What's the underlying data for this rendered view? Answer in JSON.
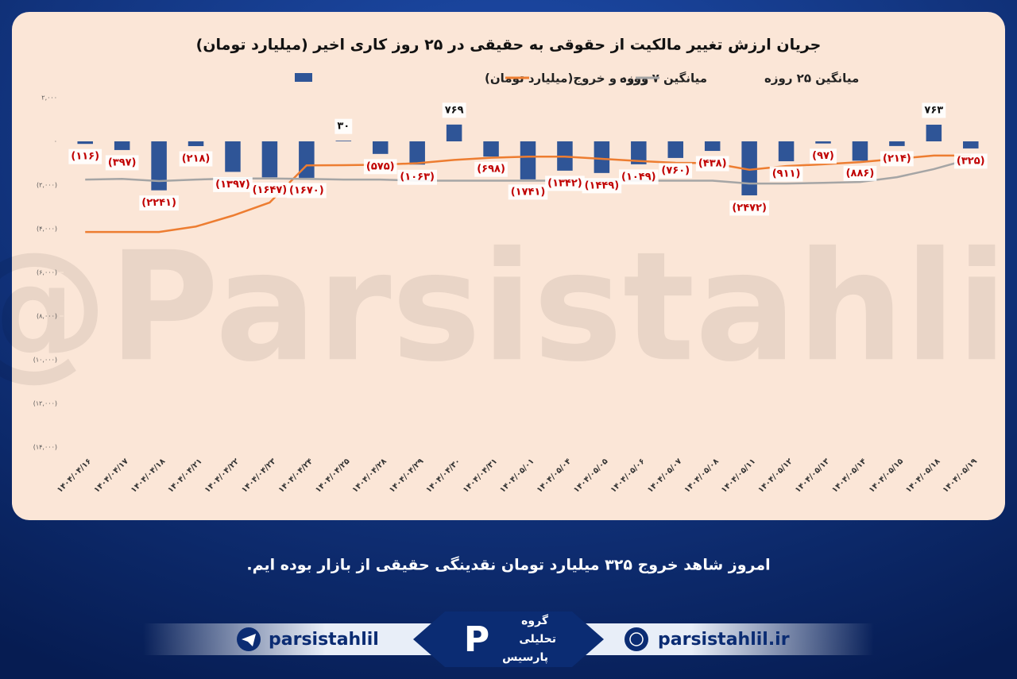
{
  "chart_data": {
    "type": "bar",
    "title": "جریان ارزش تغییر مالکیت از حقوقی به حقیقی در ۲۵ روز کاری اخیر (میلیارد تومان)",
    "categories": [
      "۱۴۰۴/۰۴/۱۶",
      "۱۴۰۴/۰۴/۱۷",
      "۱۴۰۴/۰۴/۱۸",
      "۱۴۰۴/۰۴/۲۱",
      "۱۴۰۴/۰۴/۲۲",
      "۱۴۰۴/۰۴/۲۳",
      "۱۴۰۴/۰۴/۲۴",
      "۱۴۰۴/۰۴/۲۵",
      "۱۴۰۴/۰۴/۲۸",
      "۱۴۰۴/۰۴/۲۹",
      "۱۴۰۴/۰۴/۳۰",
      "۱۴۰۴/۰۴/۳۱",
      "۱۴۰۴/۰۵/۰۱",
      "۱۴۰۴/۰۵/۰۴",
      "۱۴۰۴/۰۵/۰۵",
      "۱۴۰۴/۰۵/۰۶",
      "۱۴۰۴/۰۵/۰۷",
      "۱۴۰۴/۰۵/۰۸",
      "۱۴۰۴/۰۵/۱۱",
      "۱۴۰۴/۰۵/۱۲",
      "۱۴۰۴/۰۵/۱۳",
      "۱۴۰۴/۰۵/۱۴",
      "۱۴۰۴/۰۵/۱۵",
      "۱۴۰۴/۰۵/۱۸",
      "۱۴۰۴/۰۵/۱۹"
    ],
    "series": [
      {
        "name": "ورود و خروج(میلیارد تومان)",
        "type": "bar",
        "color": "#2f5597",
        "values": [
          -116,
          -397,
          -2241,
          -218,
          -1397,
          -1647,
          -1670,
          30,
          -575,
          -1063,
          769,
          -698,
          -1741,
          -1342,
          -1449,
          -1049,
          -760,
          -438,
          -2472,
          -911,
          -97,
          -886,
          -214,
          763,
          -325
        ],
        "value_labels": [
          "(۱۱۶)",
          "(۳۹۷)",
          "(۲۲۴۱)",
          "(۲۱۸)",
          "(۱۳۹۷)",
          "(۱۶۴۷)",
          "(۱۶۷۰)",
          "۳۰",
          "(۵۷۵)",
          "(۱۰۶۳)",
          "۷۶۹",
          "(۶۹۸)",
          "(۱۷۴۱)",
          "(۱۳۴۲)",
          "(۱۴۴۹)",
          "(۱۰۴۹)",
          "(۷۶۰)",
          "(۴۳۸)",
          "(۲۴۷۲)",
          "(۹۱۱)",
          "(۹۷)",
          "(۸۸۶)",
          "(۲۱۴)",
          "۷۶۳",
          "(۳۲۵)"
        ]
      },
      {
        "name": "میانگین ۷ روزه",
        "type": "line",
        "color": "#ed7d31",
        "values": [
          -4150,
          -4150,
          -4150,
          -3900,
          -3400,
          -2800,
          -1100,
          -1090,
          -1070,
          -1000,
          -850,
          -750,
          -700,
          -700,
          -800,
          -900,
          -980,
          -1000,
          -1300,
          -1130,
          -1050,
          -950,
          -800,
          -650,
          -650
        ]
      },
      {
        "name": "میانگین ۲۵ روزه",
        "type": "line",
        "color": "#a5a5a5",
        "values": [
          -1750,
          -1720,
          -1820,
          -1750,
          -1700,
          -1700,
          -1720,
          -1750,
          -1750,
          -1800,
          -1800,
          -1800,
          -1800,
          -1800,
          -1800,
          -1800,
          -1800,
          -1800,
          -1930,
          -1930,
          -1900,
          -1860,
          -1640,
          -1270,
          -800
        ]
      }
    ],
    "ylim": [
      -14000,
      2000
    ],
    "yticks": [
      {
        "value": 2000,
        "label": "۲,۰۰۰"
      },
      {
        "value": 0,
        "label": "۰"
      },
      {
        "value": -2000,
        "label": "(۲,۰۰۰)"
      },
      {
        "value": -4000,
        "label": "(۴,۰۰۰)"
      },
      {
        "value": -6000,
        "label": "(۶,۰۰۰)"
      },
      {
        "value": -8000,
        "label": "(۸,۰۰۰)"
      },
      {
        "value": -10000,
        "label": "(۱۰,۰۰۰)"
      },
      {
        "value": -12000,
        "label": "(۱۲,۰۰۰)"
      },
      {
        "value": -14000,
        "label": "(۱۴,۰۰۰)"
      }
    ],
    "grid": false,
    "legend": "top"
  },
  "watermark": "@Parsistahlil",
  "caption": "امروز شاهد خروج ۳۲۵ میلیارد تومان نقدینگی حقیقی از بازار بوده ایم.",
  "footer": {
    "telegram": "parsistahlil",
    "website": "parsistahlil.ir",
    "logo": [
      "گروه",
      "تحلیلی",
      "پارسیس"
    ]
  }
}
